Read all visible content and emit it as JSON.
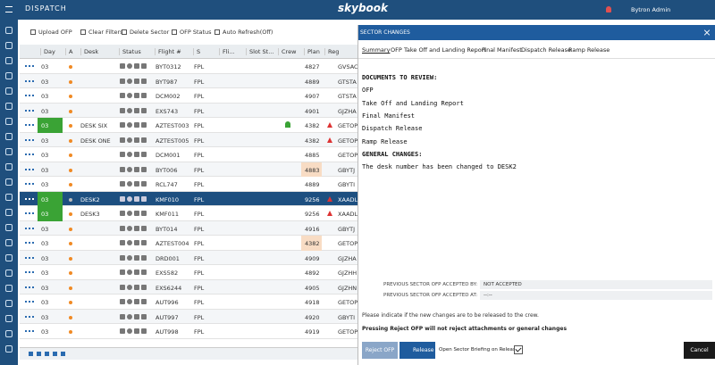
{
  "header": {
    "title": "DISPATCH",
    "logo": "skybook",
    "user": "Bytron Admin"
  },
  "toolbar": [
    "Upload OFP",
    "Clear Filters",
    "Delete Sector",
    "OFP Status",
    "Auto Refresh(Off)"
  ],
  "table": {
    "columns": [
      "Day",
      "A",
      "Desk",
      "Status",
      "Flight #",
      "S",
      "Fli...",
      "Slot St...",
      "Crew",
      "Plan",
      "Reg"
    ],
    "rows": [
      [
        "03",
        "",
        "BYT0312",
        "FPL",
        "4827",
        "GVSAC"
      ],
      [
        "03",
        "",
        "BYT987",
        "FPL",
        "4889",
        "GTSTA"
      ],
      [
        "03",
        "",
        "DCM002",
        "FPL",
        "4907",
        "GTSTA"
      ],
      [
        "03",
        "",
        "EXS743",
        "FPL",
        "4901",
        "GJZHA"
      ],
      [
        "03",
        "DESK SIX",
        "AZTEST003",
        "FPL",
        "4382",
        "GETOP"
      ],
      [
        "03",
        "DESK ONE",
        "AZTEST005",
        "FPL",
        "4382",
        "GETOP"
      ],
      [
        "03",
        "",
        "DCM001",
        "FPL",
        "4885",
        "GETOP"
      ],
      [
        "03",
        "",
        "BYT006",
        "FPL",
        "4883",
        "GBYTJ"
      ],
      [
        "03",
        "",
        "RCL747",
        "FPL",
        "4889",
        "GBYTI"
      ],
      [
        "03",
        "DESK2",
        "KMF010",
        "FPL",
        "9256",
        "XAADL"
      ],
      [
        "03",
        "DESK3",
        "KMF011",
        "FPL",
        "9256",
        "XAADL"
      ],
      [
        "03",
        "",
        "BYT014",
        "FPL",
        "4916",
        "GBYTJ"
      ],
      [
        "03",
        "",
        "AZTEST004",
        "FPL",
        "4382",
        "GETOP"
      ],
      [
        "03",
        "",
        "DRD001",
        "FPL",
        "4909",
        "GJZHA"
      ],
      [
        "03",
        "",
        "EXS582",
        "FPL",
        "4892",
        "GJZHH"
      ],
      [
        "03",
        "",
        "EXS6244",
        "FPL",
        "4905",
        "GJZHN"
      ],
      [
        "03",
        "",
        "AUT996",
        "FPL",
        "4918",
        "GETOP"
      ],
      [
        "03",
        "",
        "AUT997",
        "FPL",
        "4920",
        "GBYTI"
      ],
      [
        "03",
        "",
        "AUT998",
        "FPL",
        "4919",
        "GETOP"
      ]
    ]
  },
  "modal": {
    "title": "SECTOR CHANGES",
    "tabs": [
      "Summary",
      "OFP",
      "Take Off and Landing Report",
      "Final Manifest",
      "Dispatch Release",
      "Ramp Release"
    ],
    "body": [
      "DOCUMENTS TO REVIEW:",
      "OFP",
      "Take Off and Landing Report",
      "Final Manifest",
      "Dispatch Release",
      "Ramp Release",
      "GENERAL CHANGES:",
      "The desk number has been changed to DESK2"
    ],
    "fields": [
      {
        "label": "PREVIOUS SECTOR OFP ACCEPTED BY:",
        "value": "NOT ACCEPTED"
      },
      {
        "label": "PREVIOUS SECTOR OFP ACCEPTED AT:",
        "value": "--:--"
      }
    ],
    "instruction": "Please indicate if the new changes are to be released to the crew.",
    "warning": "Pressing Reject OFP will not reject attachments or general changes",
    "reject": "Reject OFP",
    "release": "Release",
    "checkbox": "Open Sector Briefing on Release",
    "cancel": "Cancel"
  }
}
